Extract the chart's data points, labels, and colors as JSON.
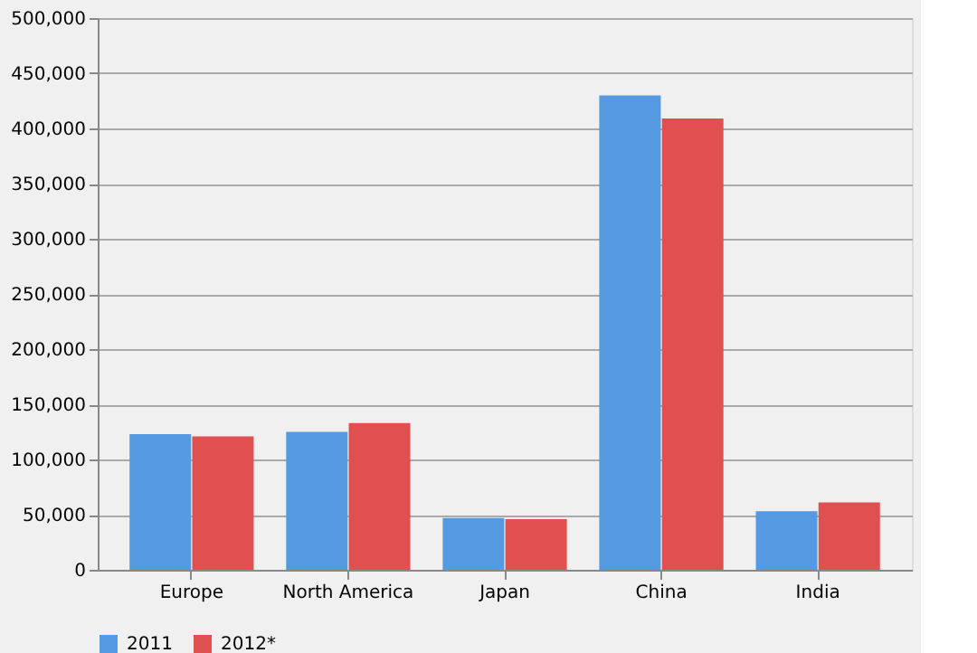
{
  "chart_data": {
    "type": "bar",
    "categories": [
      "Europe",
      "North America",
      "Japan",
      "China",
      "India"
    ],
    "series": [
      {
        "name": "2011",
        "color": "#5599e0",
        "values": [
          123000,
          125000,
          47000,
          430000,
          53000
        ]
      },
      {
        "name": "2012*",
        "color": "#e05050",
        "values": [
          121000,
          133000,
          46000,
          409000,
          61000
        ]
      }
    ],
    "ylim": [
      0,
      500000
    ],
    "yticks": [
      {
        "value": 0,
        "label": "0"
      },
      {
        "value": 50000,
        "label": "50,000"
      },
      {
        "value": 100000,
        "label": "100,000"
      },
      {
        "value": 150000,
        "label": "150,000"
      },
      {
        "value": 200000,
        "label": "200,000"
      },
      {
        "value": 250000,
        "label": "250,000"
      },
      {
        "value": 300000,
        "label": "300,000"
      },
      {
        "value": 350000,
        "label": "350,000"
      },
      {
        "value": 400000,
        "label": "400,000"
      },
      {
        "value": 450000,
        "label": "450,000"
      },
      {
        "value": 500000,
        "label": "500,000"
      }
    ],
    "grid": "y",
    "legend": "bottom"
  }
}
